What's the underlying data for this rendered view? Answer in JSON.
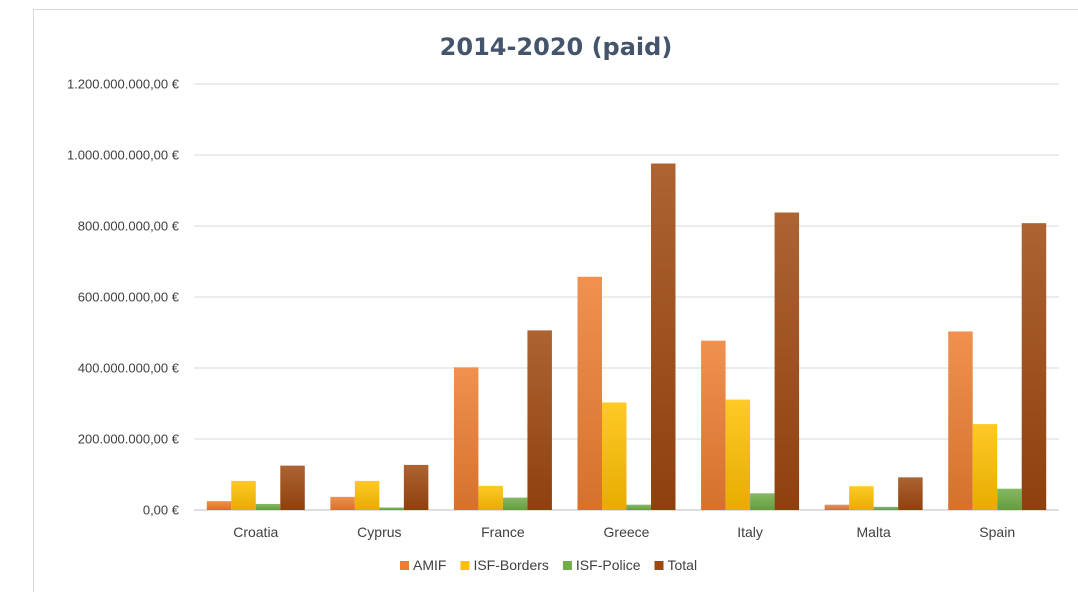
{
  "chart_data": {
    "type": "bar",
    "title": "2014-2020 (paid)",
    "xlabel": "",
    "ylabel": "",
    "categories": [
      "Croatia",
      "Cyprus",
      "France",
      "Greece",
      "Italy",
      "Malta",
      "Spain"
    ],
    "ylim": [
      0,
      1200000000
    ],
    "yticks": [
      0,
      200000000,
      400000000,
      600000000,
      800000000,
      1000000000,
      1200000000
    ],
    "ytick_labels": [
      "0,00 €",
      "200.000.000,00 €",
      "400.000.000,00 €",
      "600.000.000,00 €",
      "800.000.000,00 €",
      "1.000.000.000,00 €",
      "1.200.000.000,00 €"
    ],
    "grid": true,
    "legend_position": "bottom",
    "series": [
      {
        "name": "AMIF",
        "color": "#ed7d31",
        "values": [
          25000000,
          37000000,
          402000000,
          657000000,
          477000000,
          15000000,
          503000000
        ]
      },
      {
        "name": "ISF-Borders",
        "color": "#ffc000",
        "values": [
          82000000,
          82000000,
          68000000,
          303000000,
          311000000,
          67000000,
          242000000
        ]
      },
      {
        "name": "ISF-Police",
        "color": "#70ad47",
        "values": [
          17000000,
          7000000,
          35000000,
          15000000,
          47000000,
          9000000,
          60000000
        ]
      },
      {
        "name": "Total",
        "color": "#9e480e",
        "values": [
          125000000,
          127000000,
          506000000,
          976000000,
          838000000,
          92000000,
          808000000
        ]
      }
    ]
  }
}
